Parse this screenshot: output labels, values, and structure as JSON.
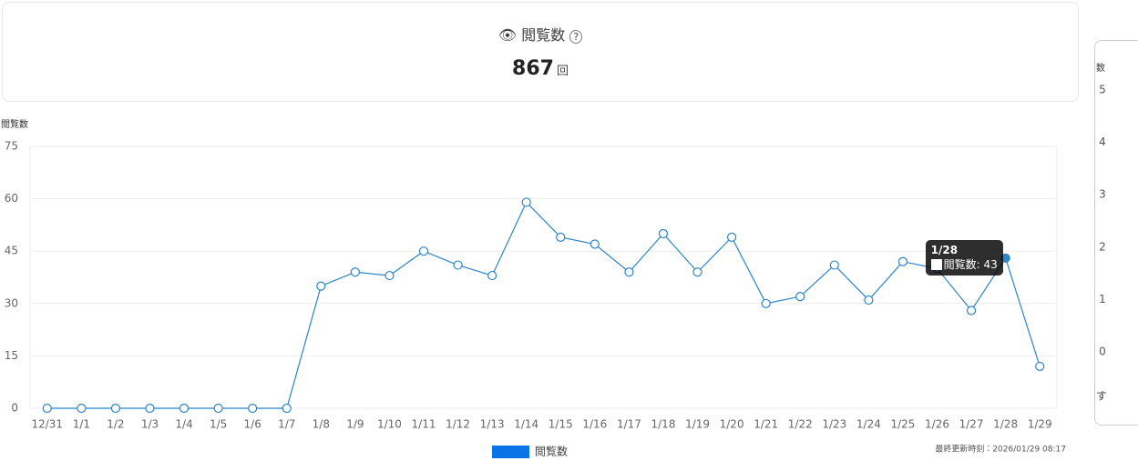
{
  "header": {
    "title": "閲覧数",
    "value": 867,
    "unit": "回"
  },
  "chart_data": {
    "type": "line",
    "y_label": "閲覧数",
    "categories": [
      "12/31",
      "1/1",
      "1/2",
      "1/3",
      "1/4",
      "1/5",
      "1/6",
      "1/7",
      "1/8",
      "1/9",
      "1/10",
      "1/11",
      "1/12",
      "1/13",
      "1/14",
      "1/15",
      "1/16",
      "1/17",
      "1/18",
      "1/19",
      "1/20",
      "1/21",
      "1/22",
      "1/23",
      "1/24",
      "1/25",
      "1/26",
      "1/27",
      "1/28",
      "1/29"
    ],
    "series": [
      {
        "name": "閲覧数",
        "color": "#2b85c9",
        "legend_color": "#0a73e6",
        "values": [
          0,
          0,
          0,
          0,
          0,
          0,
          0,
          0,
          35,
          39,
          38,
          45,
          41,
          38,
          59,
          49,
          47,
          39,
          50,
          39,
          49,
          30,
          32,
          41,
          31,
          42,
          40,
          28,
          43,
          12
        ]
      }
    ],
    "ylim": [
      0,
      75
    ],
    "yticks": [
      0,
      15,
      30,
      45,
      60,
      75
    ],
    "grid": true,
    "tooltip_index": 28
  },
  "footer": "最終更新時刻：2026/01/29 08:17",
  "side_panel": {
    "axis_label": "数",
    "ticks": [
      5,
      4,
      3,
      2,
      1,
      0
    ],
    "note": "す"
  }
}
